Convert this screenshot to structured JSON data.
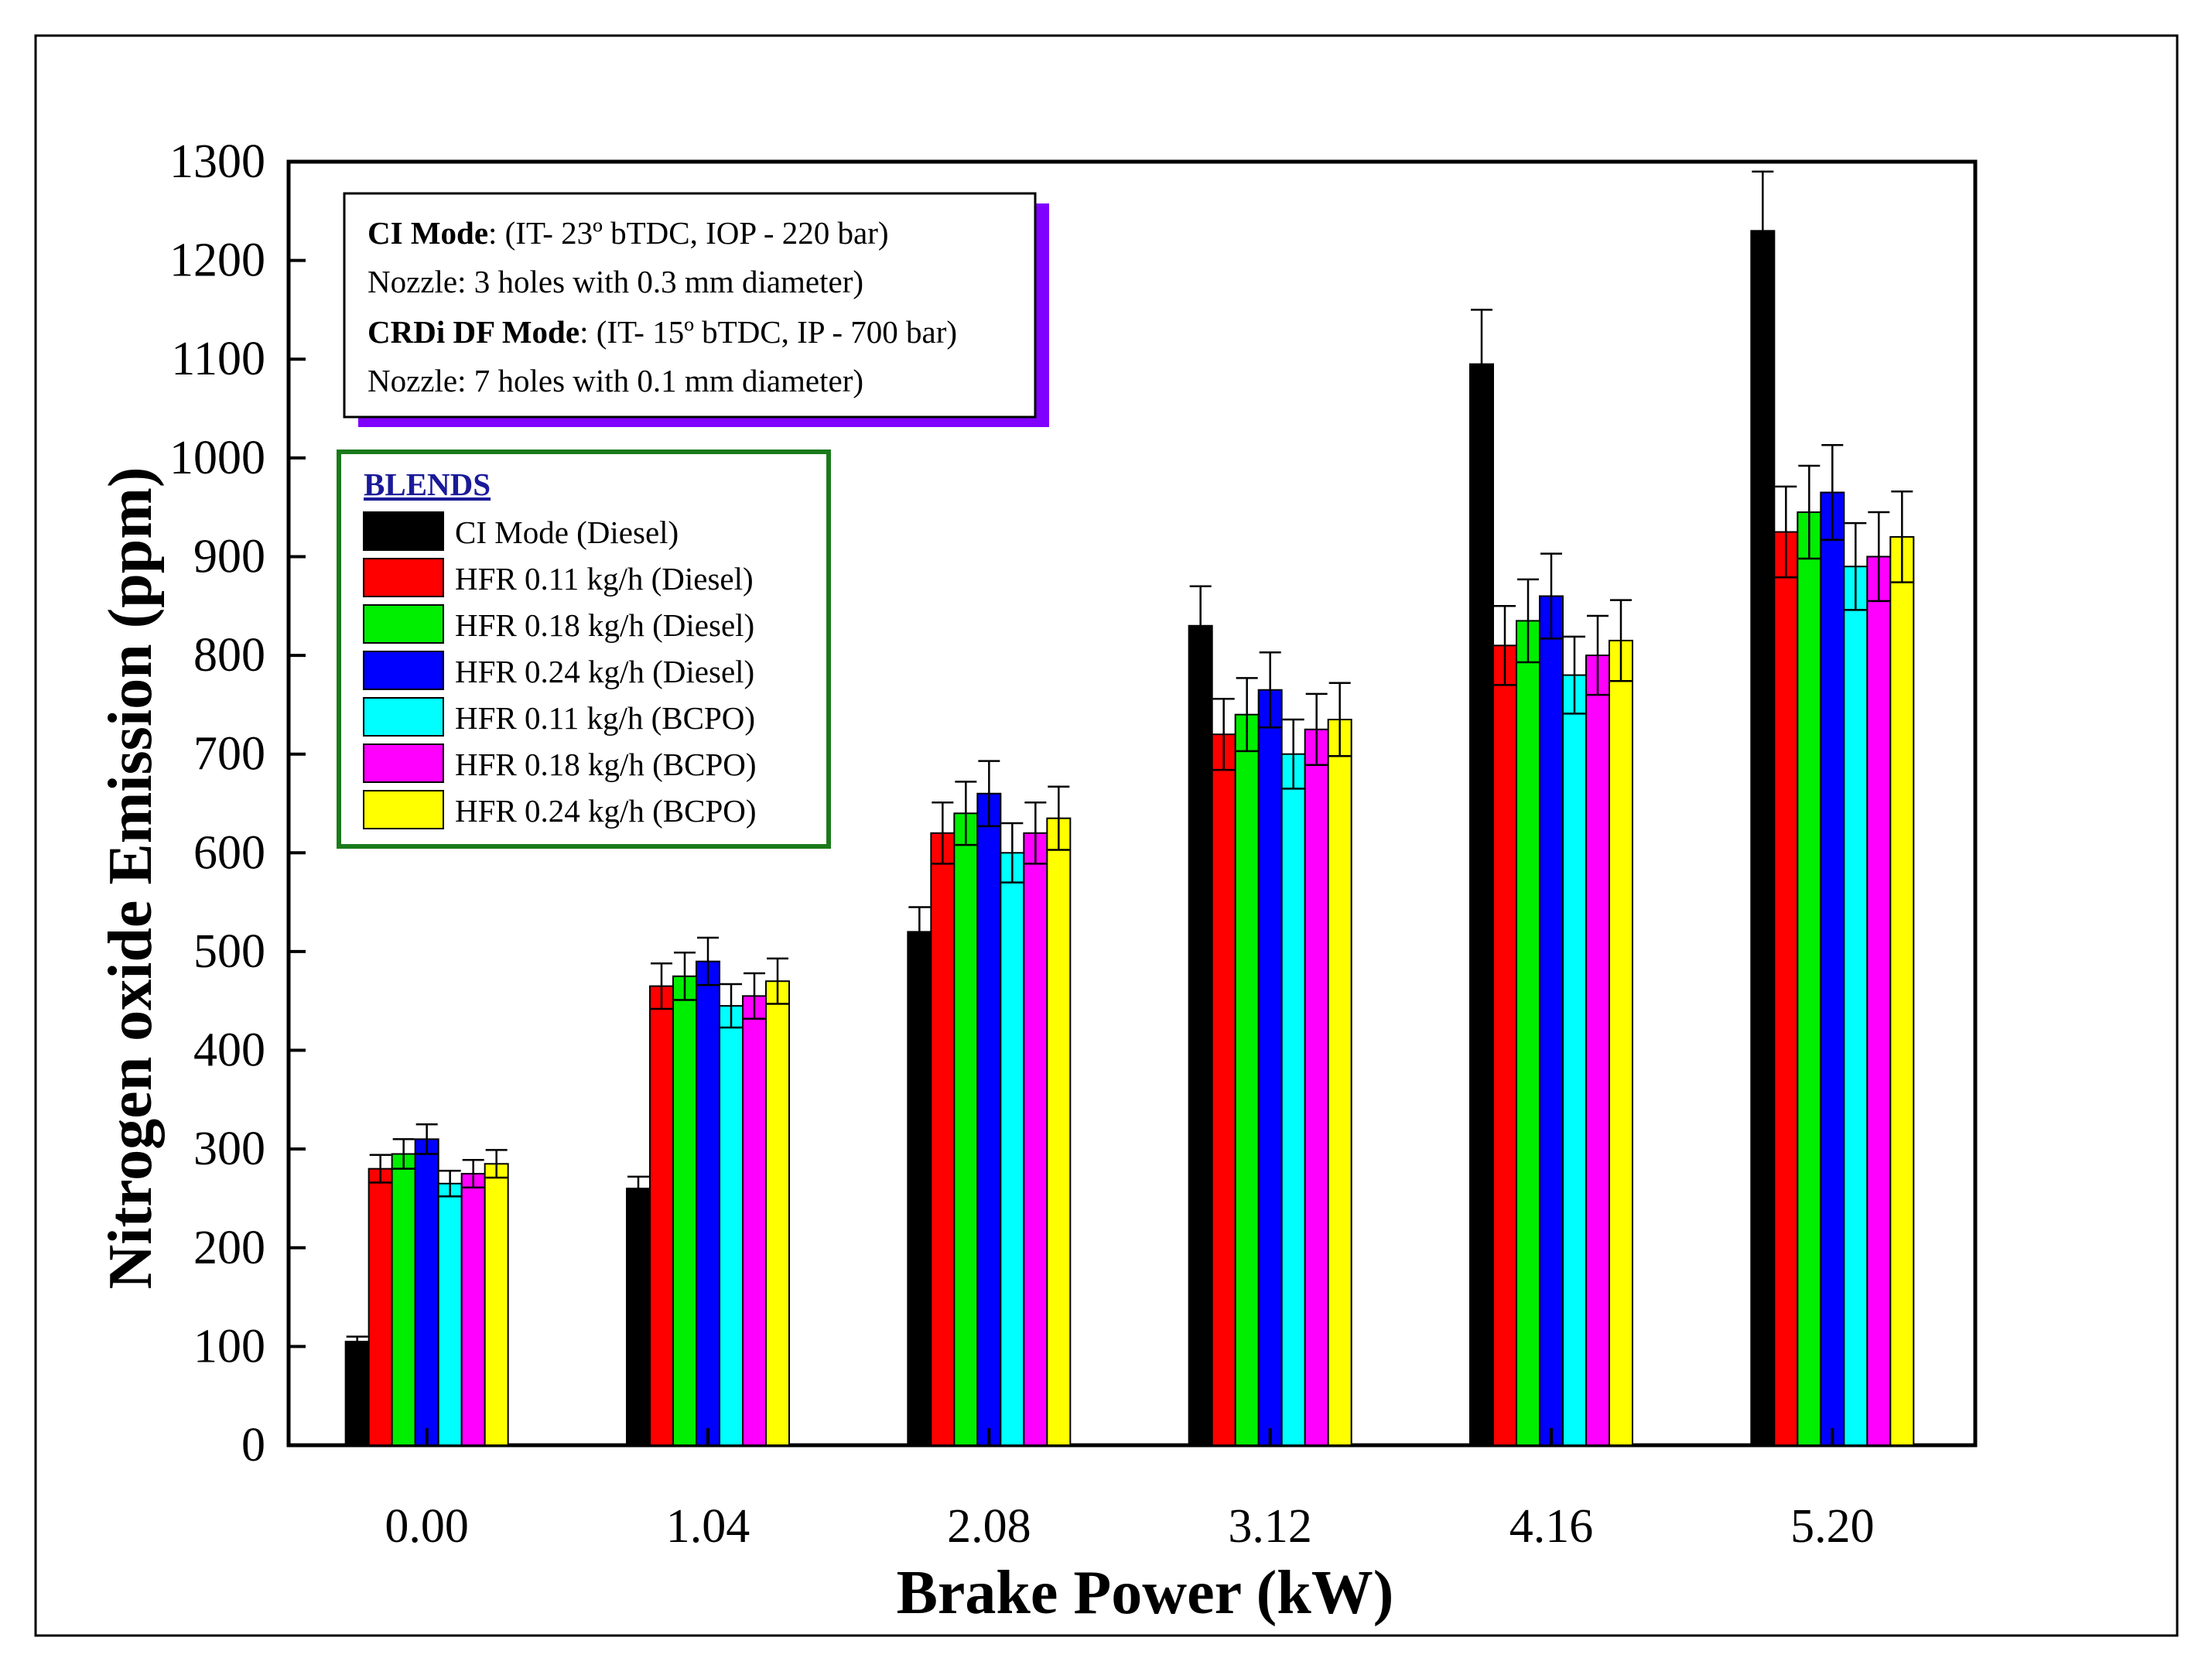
{
  "chart_data": {
    "type": "bar",
    "xlabel": "Brake Power (kW)",
    "ylabel": "Nitrogen oxide Emission (ppm)",
    "ylim": [
      0,
      1300
    ],
    "yticks": [
      "0",
      "100",
      "200",
      "300",
      "400",
      "500",
      "600",
      "700",
      "800",
      "900",
      "1000",
      "1100",
      "1200",
      "1300"
    ],
    "categories": [
      "0.00",
      "1.04",
      "2.08",
      "3.12",
      "4.16",
      "5.20"
    ],
    "error_bars": true,
    "legend_title": "BLENDS",
    "legend_position": "upper-left",
    "series": [
      {
        "name": "CI Mode (Diesel)",
        "color": "#000000",
        "values": [
          105,
          260,
          520,
          830,
          1095,
          1230
        ],
        "errors": [
          5,
          12,
          25,
          40,
          55,
          60
        ]
      },
      {
        "name": "HFR 0.11  kg/h (Diesel)",
        "color": "#ff0000",
        "values": [
          280,
          465,
          620,
          720,
          810,
          925
        ],
        "errors": [
          14,
          23,
          31,
          36,
          40,
          46
        ]
      },
      {
        "name": "HFR 0.18  kg/h (Diesel)",
        "color": "#00ee00",
        "values": [
          295,
          475,
          640,
          740,
          835,
          945
        ],
        "errors": [
          15,
          24,
          32,
          37,
          42,
          47
        ]
      },
      {
        "name": "HFR 0.24  kg/h (Diesel)",
        "color": "#0000ff",
        "values": [
          310,
          490,
          660,
          765,
          860,
          965
        ],
        "errors": [
          15,
          24,
          33,
          38,
          43,
          48
        ]
      },
      {
        "name": "HFR 0.11  kg/h (BCPO)",
        "color": "#00ffff",
        "values": [
          265,
          445,
          600,
          700,
          780,
          890
        ],
        "errors": [
          13,
          22,
          30,
          35,
          39,
          44
        ]
      },
      {
        "name": "HFR 0.18  kg/h (BCPO)",
        "color": "#ff00ff",
        "values": [
          275,
          455,
          620,
          725,
          800,
          900
        ],
        "errors": [
          14,
          23,
          31,
          36,
          40,
          45
        ]
      },
      {
        "name": "HFR 0.24  kg/h (BCPO)",
        "color": "#ffff00",
        "values": [
          285,
          470,
          635,
          735,
          815,
          920
        ],
        "errors": [
          14,
          23,
          32,
          37,
          41,
          46
        ]
      }
    ],
    "annotation": [
      {
        "bold": "CI Mode",
        "rest": ": (IT- 23º bTDC, IOP - 220 bar)"
      },
      {
        "bold": "",
        "rest": "Nozzle: 3 holes with 0.3 mm diameter)"
      },
      {
        "bold": "CRDi DF Mode",
        "rest": ": (IT- 15º bTDC, IP - 700 bar)"
      },
      {
        "bold": "",
        "rest": "Nozzle: 7 holes with 0.1 mm diameter)"
      }
    ],
    "annotation_shadow_color": "#8000ff",
    "legend_border_color": "#1a7a1a"
  }
}
